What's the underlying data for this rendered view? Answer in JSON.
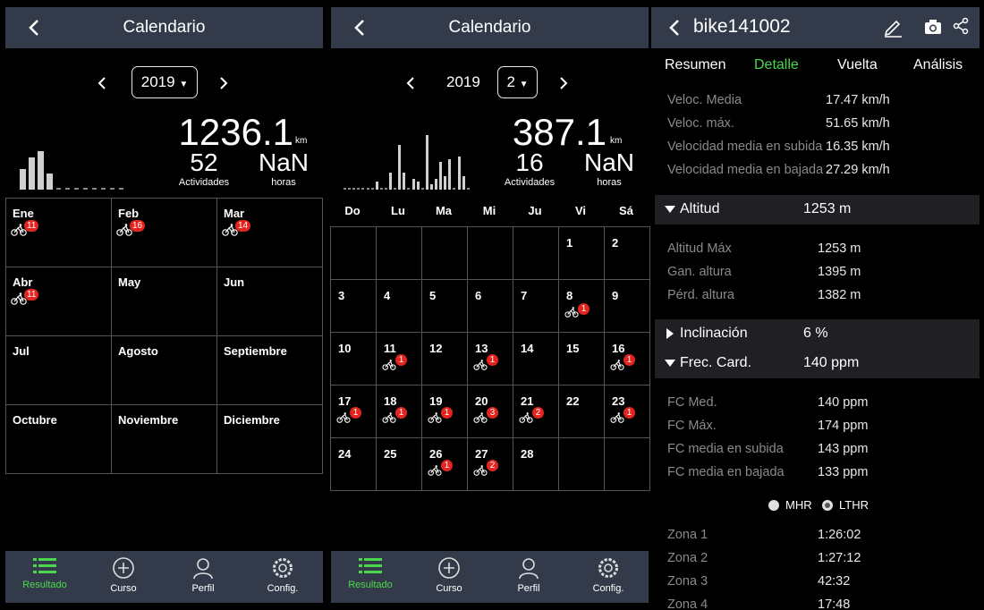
{
  "panel1": {
    "title": "Calendario",
    "year_selected": "2019",
    "total_km": "1236.1",
    "km_unit": "km",
    "activities": "52",
    "activities_label": "Actividades",
    "hours": "NaN",
    "hours_label": "horas",
    "month_bars": [
      0.45,
      0.7,
      0.82,
      0.35,
      0,
      0,
      0,
      0,
      0,
      0,
      0,
      0
    ],
    "months": [
      {
        "name": "Ene",
        "count": "11"
      },
      {
        "name": "Feb",
        "count": "16"
      },
      {
        "name": "Mar",
        "count": "14"
      },
      {
        "name": "Abr",
        "count": "11"
      },
      {
        "name": "May",
        "count": ""
      },
      {
        "name": "Jun",
        "count": ""
      },
      {
        "name": "Jul",
        "count": ""
      },
      {
        "name": "Agosto",
        "count": ""
      },
      {
        "name": "Septiembre",
        "count": ""
      },
      {
        "name": "Octubre",
        "count": ""
      },
      {
        "name": "Noviembre",
        "count": ""
      },
      {
        "name": "Diciembre",
        "count": ""
      }
    ]
  },
  "panel2": {
    "title": "Calendario",
    "year": "2019",
    "month_selected": "2",
    "total_km": "387.1",
    "km_unit": "km",
    "activities": "16",
    "activities_label": "Actividades",
    "hours": "NaN",
    "hours_label": "horas",
    "day_bars": [
      0,
      0,
      0,
      0,
      0,
      0,
      0,
      0.15,
      0,
      0,
      0.3,
      0,
      0.8,
      0.3,
      0,
      0.2,
      0.15,
      0,
      0.98,
      0.1,
      0.2,
      0.5,
      0.25,
      0.55,
      0,
      0.6,
      0.25,
      0
    ],
    "weekdays": [
      "Do",
      "Lu",
      "Ma",
      "Mi",
      "Ju",
      "Vi",
      "Sá"
    ],
    "weeks": [
      [
        {
          "d": "",
          "c": ""
        },
        {
          "d": "",
          "c": ""
        },
        {
          "d": "",
          "c": ""
        },
        {
          "d": "",
          "c": ""
        },
        {
          "d": "",
          "c": ""
        },
        {
          "d": "1",
          "c": ""
        },
        {
          "d": "2",
          "c": ""
        }
      ],
      [
        {
          "d": "3",
          "c": ""
        },
        {
          "d": "4",
          "c": ""
        },
        {
          "d": "5",
          "c": ""
        },
        {
          "d": "6",
          "c": ""
        },
        {
          "d": "7",
          "c": ""
        },
        {
          "d": "8",
          "c": "1"
        },
        {
          "d": "9",
          "c": ""
        }
      ],
      [
        {
          "d": "10",
          "c": ""
        },
        {
          "d": "11",
          "c": "1"
        },
        {
          "d": "12",
          "c": ""
        },
        {
          "d": "13",
          "c": "1"
        },
        {
          "d": "14",
          "c": ""
        },
        {
          "d": "15",
          "c": ""
        },
        {
          "d": "16",
          "c": "1"
        }
      ],
      [
        {
          "d": "17",
          "c": "1"
        },
        {
          "d": "18",
          "c": "1"
        },
        {
          "d": "19",
          "c": "1"
        },
        {
          "d": "20",
          "c": "3"
        },
        {
          "d": "21",
          "c": "2"
        },
        {
          "d": "22",
          "c": ""
        },
        {
          "d": "23",
          "c": "1"
        }
      ],
      [
        {
          "d": "24",
          "c": ""
        },
        {
          "d": "25",
          "c": ""
        },
        {
          "d": "26",
          "c": "1"
        },
        {
          "d": "27",
          "c": "2"
        },
        {
          "d": "28",
          "c": ""
        },
        {
          "d": "",
          "c": ""
        },
        {
          "d": "",
          "c": ""
        }
      ]
    ]
  },
  "nav": {
    "result": "Resultado",
    "course": "Curso",
    "profile": "Perfil",
    "config": "Config."
  },
  "panel3": {
    "title": "bike141002",
    "tabs": [
      "Resumen",
      "Detalle",
      "Vuelta",
      "Análisis"
    ],
    "speed": [
      {
        "label": "Veloc. Media",
        "value": "17.47 km/h"
      },
      {
        "label": "Veloc. máx.",
        "value": "51.65 km/h"
      },
      {
        "label": "Velocidad media en subida",
        "value": "16.35 km/h"
      },
      {
        "label": "Velocidad media en bajada",
        "value": "27.29 km/h"
      }
    ],
    "altitude": {
      "title": "Altitud",
      "value": "1253 m"
    },
    "altitude_rows": [
      {
        "label": "Altitud Máx",
        "value": "1253 m"
      },
      {
        "label": "Gan. altura",
        "value": "1395 m"
      },
      {
        "label": "Pérd. altura",
        "value": "1382 m"
      }
    ],
    "incline": {
      "title": "Inclinación",
      "value": "6 %"
    },
    "heart": {
      "title": "Frec. Card.",
      "value": "140 ppm"
    },
    "heart_rows": [
      {
        "label": "FC Med.",
        "value": "140 ppm"
      },
      {
        "label": "FC Máx.",
        "value": "174 ppm"
      },
      {
        "label": "FC media en subida",
        "value": "143 ppm"
      },
      {
        "label": "FC media en bajada",
        "value": "133 ppm"
      }
    ],
    "radio_mhr": "MHR",
    "radio_lthr": "LTHR",
    "zones": [
      {
        "label": "Zona 1",
        "value": "1:26:02"
      },
      {
        "label": "Zona 2",
        "value": "1:27:12"
      },
      {
        "label": "Zona 3",
        "value": "42:32"
      },
      {
        "label": "Zona 4",
        "value": "17:48"
      }
    ]
  },
  "colors": {
    "header": "#333b4a",
    "accent": "#4cd84c",
    "badge": "#e5241f"
  }
}
